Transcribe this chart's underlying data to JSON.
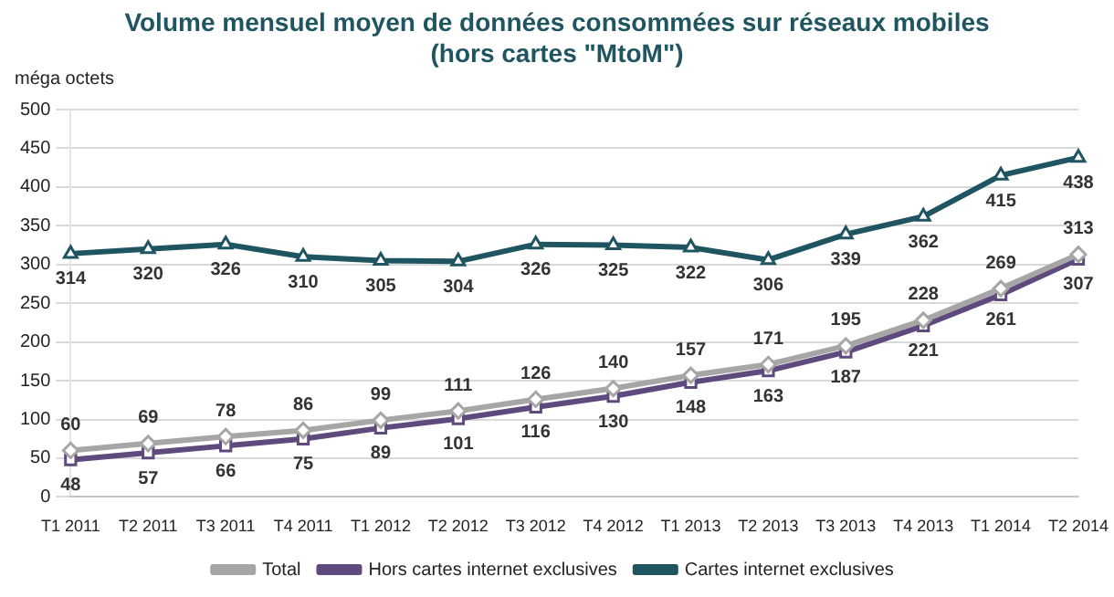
{
  "chart_data": {
    "type": "line",
    "title": "Volume mensuel moyen de données consommées sur réseaux mobiles",
    "subtitle": "(hors cartes \"MtoM\")",
    "ylabel": "méga octets",
    "categories": [
      "T1 2011",
      "T2 2011",
      "T3 2011",
      "T4 2011",
      "T1 2012",
      "T2 2012",
      "T3 2012",
      "T4 2012",
      "T1 2013",
      "T2 2013",
      "T3 2013",
      "T4 2013",
      "T1 2014",
      "T2 2014"
    ],
    "series": [
      {
        "name": "Total",
        "color": "#a6a6a6",
        "marker": "diamond",
        "values": [
          60,
          69,
          78,
          86,
          99,
          111,
          126,
          140,
          157,
          171,
          195,
          228,
          269,
          313
        ]
      },
      {
        "name": "Hors cartes internet exclusives",
        "color": "#5f4a7e",
        "marker": "square",
        "values": [
          48,
          57,
          66,
          75,
          89,
          101,
          116,
          130,
          148,
          163,
          187,
          221,
          261,
          307
        ]
      },
      {
        "name": "Cartes internet exclusives",
        "color": "#1f5560",
        "marker": "triangle",
        "values": [
          314,
          320,
          326,
          310,
          305,
          304,
          326,
          325,
          322,
          306,
          339,
          362,
          415,
          438
        ]
      }
    ],
    "ylim": [
      0,
      500
    ],
    "yticks": [
      0,
      50,
      100,
      150,
      200,
      250,
      300,
      350,
      400,
      450,
      500
    ],
    "grid": "y",
    "legend": "bottom",
    "data_labels": true,
    "line_style": "solid"
  }
}
